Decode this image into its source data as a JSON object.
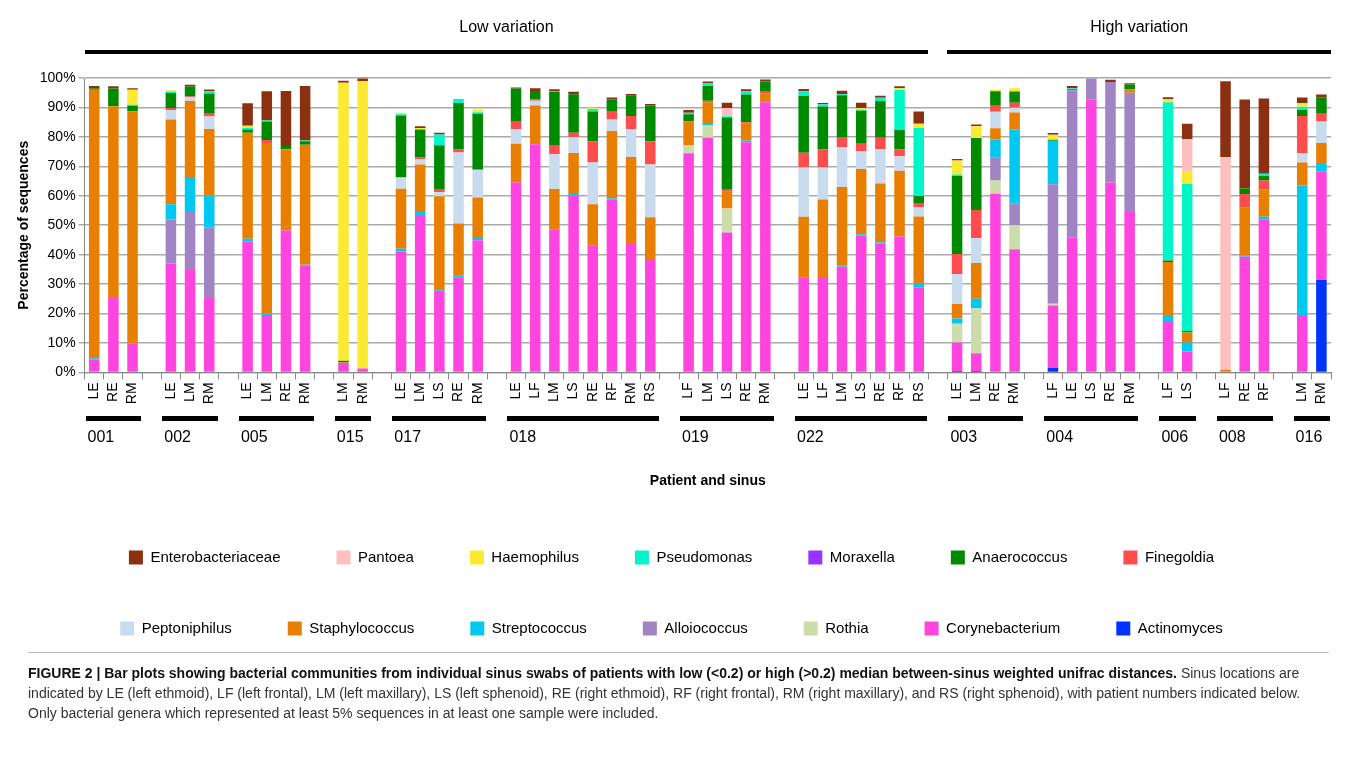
{
  "chart_data": {
    "type": "bar",
    "stacked": true,
    "xlabel": "Patient and sinus",
    "ylabel": "Percentage of sequences",
    "categories": [
      "LE",
      "RE",
      "RM",
      null,
      "LE",
      "LM",
      "RM",
      null,
      "LE",
      "LM",
      "RE",
      "RM",
      null,
      "LM",
      "RM",
      null,
      "LE",
      "LM",
      "LS",
      "RE",
      "RM",
      null,
      "LE",
      "LF",
      "LM",
      "LS",
      "RE",
      "RF",
      "RM",
      "RS",
      null,
      "LF",
      "LM",
      "LS",
      "RE",
      "RM",
      null,
      "LE",
      "LF",
      "LM",
      "LS",
      "RE",
      "RF",
      "RS",
      null,
      "LE",
      "LM",
      "RE",
      "RM",
      null,
      "LF",
      "LE",
      "LS",
      "RE",
      "RM",
      null,
      "LF",
      "LS",
      null,
      "LF",
      "RE",
      "RF",
      null,
      "LM",
      "RM"
    ],
    "series": [
      {
        "name": "Actinomyces",
        "color": "#0033ff",
        "values": [
          null,
          null,
          null,
          null,
          null,
          null,
          null,
          null,
          null,
          null,
          null,
          null,
          null,
          null,
          null,
          null,
          null,
          null,
          null,
          null,
          null,
          null,
          null,
          null,
          null,
          null,
          null,
          null,
          null,
          null,
          null,
          null,
          null,
          null,
          null,
          null,
          null,
          null,
          null,
          null,
          null,
          null,
          null,
          null,
          null,
          0.5,
          0.5,
          null,
          null,
          null,
          1.5,
          null,
          null,
          null,
          null,
          null,
          null,
          null,
          null,
          null,
          null,
          null,
          null,
          null,
          31.4
        ]
      },
      {
        "name": "Corynebacterium",
        "color": "#ff44e0",
        "values": [
          4.5,
          25.3,
          9.7,
          null,
          37.0,
          34.8,
          25.3,
          null,
          44.4,
          19.5,
          48.2,
          36.2,
          null,
          2.9,
          1.3,
          null,
          41.1,
          53.5,
          27.7,
          32.3,
          44.9,
          null,
          64.5,
          77.5,
          48.6,
          60.2,
          43.0,
          58.8,
          44.0,
          38.2,
          null,
          74.4,
          79.7,
          47.5,
          78.2,
          91.8,
          null,
          32.3,
          32.1,
          35.9,
          46.4,
          43.8,
          46.2,
          28.9,
          null,
          9.7,
          6.0,
          60.7,
          41.8,
          null,
          21.2,
          45.7,
          92.8,
          64.5,
          54.5,
          null,
          17.5,
          7.1,
          null,
          0.5,
          39.3,
          52.0,
          null,
          19.5,
          36.8
        ]
      },
      {
        "name": "Rothia",
        "color": "#ccdcaa",
        "values": [
          null,
          null,
          null,
          null,
          null,
          null,
          null,
          null,
          null,
          null,
          null,
          null,
          null,
          null,
          null,
          null,
          null,
          null,
          null,
          null,
          null,
          null,
          null,
          null,
          null,
          null,
          null,
          null,
          null,
          null,
          null,
          2.7,
          4.2,
          8.2,
          null,
          null,
          null,
          null,
          null,
          null,
          null,
          null,
          null,
          null,
          null,
          6.3,
          15.3,
          4.5,
          8.2,
          null,
          0.6,
          null,
          null,
          null,
          null,
          null,
          null,
          null,
          null,
          null,
          null,
          null,
          null,
          null,
          null
        ]
      },
      {
        "name": "Alloiococcus",
        "color": "#a084c4",
        "values": [
          null,
          null,
          null,
          null,
          14.9,
          19.7,
          23.8,
          null,
          null,
          null,
          null,
          null,
          null,
          null,
          null,
          null,
          null,
          null,
          null,
          null,
          null,
          null,
          null,
          null,
          null,
          null,
          null,
          null,
          null,
          null,
          null,
          null,
          null,
          null,
          null,
          null,
          null,
          null,
          null,
          null,
          null,
          null,
          null,
          null,
          null,
          null,
          null,
          7.7,
          7.3,
          null,
          40.6,
          50.1,
          7.0,
          34.1,
          40.5,
          null,
          null,
          null,
          null,
          null,
          null,
          null,
          null,
          null,
          null
        ]
      },
      {
        "name": "Streptococcus",
        "color": "#00c8f0",
        "values": [
          0.3,
          0.3,
          null,
          null,
          5.2,
          11.9,
          11.0,
          null,
          1.0,
          0.5,
          null,
          0.4,
          null,
          null,
          null,
          null,
          0.9,
          1.0,
          0.3,
          0.5,
          1.1,
          null,
          null,
          null,
          null,
          0.4,
          null,
          0.4,
          null,
          null,
          null,
          null,
          0.5,
          null,
          0.6,
          0.4,
          null,
          null,
          null,
          0.3,
          0.5,
          0.4,
          null,
          1.1,
          null,
          1.8,
          3.2,
          6.2,
          25.2,
          null,
          14.8,
          null,
          null,
          null,
          null,
          null,
          2.0,
          3.1,
          null,
          null,
          0.3,
          0.9,
          null,
          44.0,
          2.9
        ]
      },
      {
        "name": "Staphylococcus",
        "color": "#e97f00",
        "values": [
          91.2,
          64.8,
          79.0,
          null,
          28.8,
          25.8,
          22.6,
          null,
          36.0,
          57.9,
          27.6,
          40.7,
          null,
          0.5,
          null,
          null,
          20.4,
          16.1,
          31.8,
          17.8,
          13.4,
          null,
          13.2,
          13.2,
          13.7,
          13.9,
          14.1,
          22.8,
          29.2,
          14.5,
          null,
          8.1,
          7.4,
          5.8,
          5.7,
          2.6,
          null,
          20.6,
          26.6,
          26.8,
          22.2,
          20.0,
          22.3,
          23.0,
          null,
          4.9,
          12.2,
          3.8,
          5.8,
          null,
          null,
          null,
          null,
          null,
          1.2,
          null,
          18.0,
          3.4,
          null,
          0.4,
          16.3,
          9.2,
          null,
          7.8,
          6.8
        ]
      },
      {
        "name": "Peptoniphilus",
        "color": "#c9dcef",
        "values": [
          null,
          null,
          null,
          null,
          3.2,
          1.3,
          4.2,
          null,
          null,
          null,
          null,
          null,
          null,
          null,
          null,
          null,
          3.8,
          1.9,
          1.5,
          24.1,
          9.4,
          null,
          5.0,
          1.6,
          11.8,
          5.5,
          14.2,
          3.9,
          9.5,
          17.9,
          null,
          null,
          null,
          null,
          null,
          null,
          null,
          16.7,
          10.9,
          13.6,
          6.1,
          11.7,
          4.9,
          3.2,
          null,
          10.2,
          8.4,
          5.6,
          1.6,
          null,
          null,
          null,
          null,
          null,
          null,
          null,
          null,
          null,
          null,
          null,
          null,
          null,
          null,
          3.2,
          7.3
        ]
      },
      {
        "name": "Finegoldia",
        "color": "#ff4d4d",
        "values": [
          null,
          null,
          null,
          null,
          0.7,
          0.3,
          1.0,
          null,
          null,
          1.0,
          null,
          null,
          null,
          null,
          null,
          null,
          null,
          0.6,
          1.0,
          1.0,
          null,
          null,
          2.4,
          0.4,
          2.9,
          1.4,
          7.1,
          2.6,
          4.4,
          7.8,
          null,
          null,
          0.5,
          0.8,
          0.5,
          0.5,
          null,
          5.0,
          6.1,
          3.4,
          2.5,
          3.8,
          2.4,
          1.1,
          null,
          6.8,
          9.6,
          2.1,
          1.7,
          null,
          null,
          null,
          null,
          null,
          null,
          null,
          null,
          null,
          null,
          null,
          4.7,
          3.1,
          null,
          12.6,
          2.7
        ]
      },
      {
        "name": "Anaerococcus",
        "color": "#008a00",
        "values": [
          0.5,
          6.0,
          1.9,
          null,
          5.1,
          3.3,
          6.8,
          null,
          1.1,
          6.3,
          1.1,
          1.2,
          null,
          0.6,
          null,
          null,
          21.1,
          9.4,
          14.9,
          15.8,
          19.1,
          null,
          11.3,
          2.9,
          18.3,
          13.1,
          10.2,
          4.2,
          6.9,
          12.3,
          null,
          2.5,
          5.0,
          24.3,
          9.4,
          3.5,
          null,
          19.3,
          14.6,
          14.1,
          11.2,
          12.5,
          6.6,
          2.6,
          null,
          26.5,
          24.4,
          4.9,
          3.8,
          null,
          0.3,
          0.4,
          null,
          null,
          1.6,
          null,
          0.5,
          0.5,
          null,
          null,
          1.9,
          1.6,
          null,
          2.0,
          5.6
        ]
      },
      {
        "name": "Moraxella",
        "color": "#9933ff",
        "values": [
          null,
          null,
          null,
          null,
          null,
          null,
          null,
          null,
          null,
          null,
          null,
          null,
          null,
          null,
          null,
          null,
          null,
          null,
          null,
          null,
          null,
          null,
          null,
          null,
          null,
          null,
          null,
          null,
          null,
          null,
          null,
          null,
          null,
          null,
          null,
          null,
          null,
          null,
          null,
          null,
          null,
          null,
          null,
          null,
          null,
          null,
          null,
          null,
          null,
          null,
          null,
          null,
          null,
          null,
          null,
          null,
          null,
          null,
          null,
          null,
          null,
          null,
          null,
          null,
          null
        ]
      },
      {
        "name": "Pseudomonas",
        "color": "#00f5c8",
        "values": [
          null,
          null,
          0.3,
          null,
          0.5,
          null,
          0.8,
          null,
          0.6,
          0.4,
          null,
          0.3,
          null,
          null,
          null,
          null,
          0.4,
          null,
          3.6,
          1.4,
          0.5,
          null,
          null,
          null,
          0.3,
          null,
          0.9,
          null,
          null,
          null,
          null,
          0.5,
          0.9,
          0.4,
          1.1,
          null,
          null,
          1.6,
          0.8,
          0.4,
          0.4,
          1.1,
          13.5,
          23.1,
          null,
          0.5,
          null,
          null,
          null,
          null,
          null,
          0.3,
          null,
          null,
          null,
          null,
          53.8,
          50.0,
          null,
          null,
          null,
          0.7,
          null,
          1.1,
          null
        ]
      },
      {
        "name": "Haemophilus",
        "color": "#fcea32",
        "values": [
          null,
          null,
          5.1,
          null,
          0.4,
          null,
          null,
          null,
          0.7,
          null,
          null,
          null,
          null,
          94.4,
          97.6,
          null,
          0.5,
          0.5,
          null,
          null,
          0.9,
          null,
          null,
          null,
          null,
          null,
          0.4,
          null,
          null,
          null,
          null,
          null,
          null,
          null,
          null,
          null,
          null,
          null,
          null,
          null,
          0.5,
          null,
          0.6,
          1.5,
          null,
          4.8,
          4.0,
          0.6,
          1.1,
          null,
          1.7,
          null,
          null,
          null,
          null,
          null,
          1.1,
          4.1,
          null,
          null,
          null,
          null,
          null,
          1.3,
          null
        ]
      },
      {
        "name": "Pantoea",
        "color": "#ffbfbf",
        "values": [
          null,
          null,
          null,
          null,
          null,
          null,
          null,
          null,
          null,
          null,
          null,
          null,
          null,
          null,
          null,
          null,
          null,
          null,
          null,
          null,
          null,
          null,
          null,
          null,
          null,
          null,
          null,
          null,
          null,
          null,
          null,
          null,
          null,
          2.8,
          null,
          null,
          null,
          null,
          null,
          null,
          null,
          null,
          null,
          null,
          null,
          null,
          null,
          null,
          null,
          null,
          null,
          null,
          null,
          null,
          null,
          null,
          null,
          11.1,
          null,
          72.3,
          null,
          null,
          null,
          null,
          null
        ]
      },
      {
        "name": "Enterobacteriaceae",
        "color": "#8b3010",
        "values": [
          0.8,
          0.8,
          0.5,
          null,
          null,
          0.6,
          0.6,
          null,
          7.6,
          9.9,
          18.7,
          18.5,
          null,
          0.7,
          0.9,
          null,
          null,
          0.6,
          0.6,
          null,
          null,
          null,
          0.4,
          0.9,
          0.6,
          0.8,
          null,
          0.7,
          0.6,
          0.5,
          null,
          0.9,
          0.6,
          1.8,
          0.7,
          0.7,
          null,
          0.8,
          0.4,
          1.2,
          1.8,
          0.7,
          0.7,
          4.1,
          null,
          0.5,
          0.6,
          null,
          null,
          null,
          0.6,
          0.8,
          null,
          0.8,
          0.4,
          null,
          0.6,
          5.2,
          null,
          25.7,
          30.2,
          25.5,
          null,
          1.9,
          0.9
        ]
      }
    ],
    "ylim": [
      0,
      100
    ],
    "yticks": [
      {
        "value": 0,
        "label": "0%"
      },
      {
        "value": 10,
        "label": "10%"
      },
      {
        "value": 20,
        "label": "20%"
      },
      {
        "value": 30,
        "label": "30%"
      },
      {
        "value": 40,
        "label": "40%"
      },
      {
        "value": 50,
        "label": "50%"
      },
      {
        "value": 60,
        "label": "60%"
      },
      {
        "value": 70,
        "label": "70%"
      },
      {
        "value": 80,
        "label": "80%"
      },
      {
        "value": 90,
        "label": "90%"
      },
      {
        "value": 100,
        "label": "100%"
      }
    ],
    "grid": "y",
    "legend": "bottom",
    "annotations": [
      "Low variation",
      "High variation",
      "001",
      "002",
      "005",
      "015",
      "017",
      "018",
      "019",
      "022",
      "003",
      "004",
      "006",
      "008",
      "016",
      "FIGURE 2 | Bar plots showing bacterial communities from individual sinus swabs of patients with low (<0.2) or high (>0.2) median between-sinus weighted unifrac distances.",
      "Sinus locations are indicated by LE (left ethmoid), LF (left frontal), LM (left maxillary), LS (left sphenoid), RE (right ethmoid), RF (right frontal), RM (right maxillary), and RS (right sphenoid), with patient numbers indicated below. Only bacterial genera which represented at least 5% sequences in at least one sample were included."
    ]
  }
}
